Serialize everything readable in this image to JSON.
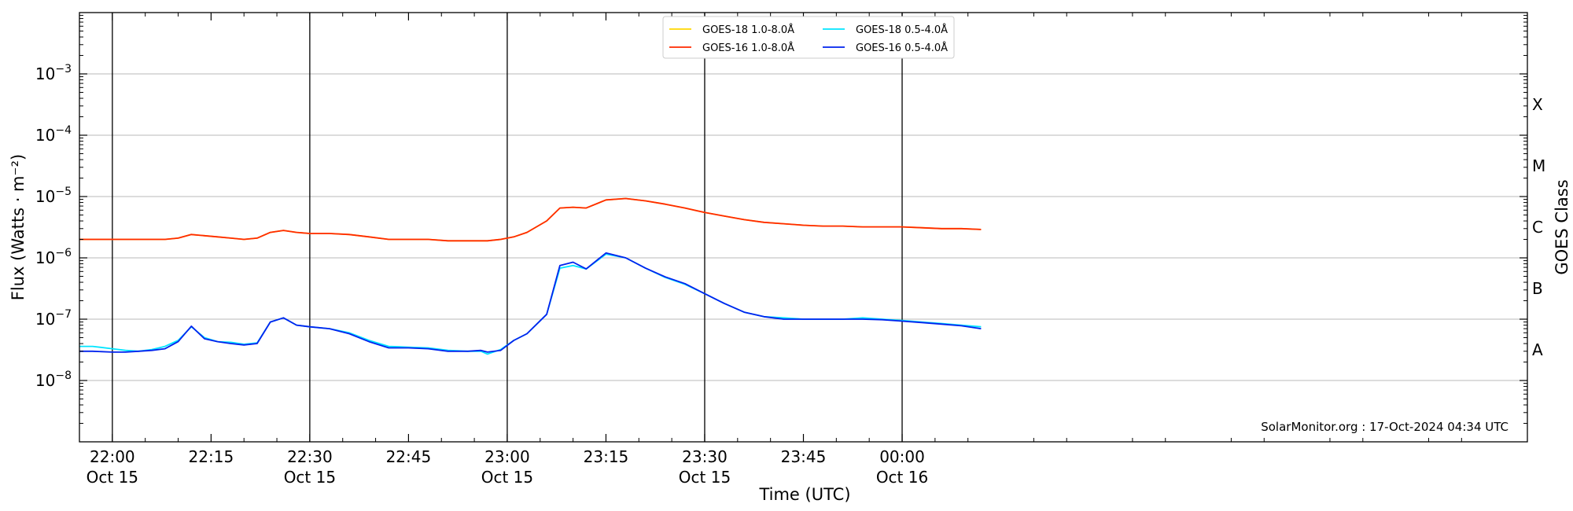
{
  "chart_data": {
    "type": "line",
    "ylabel": "Flux (Watts · m⁻²)",
    "xlabel": "Time (UTC)",
    "right_axis_label": "GOES Class",
    "credit": "SolarMonitor.org : 17-Oct-2024 04:34 UTC",
    "y_scale": "log",
    "ylim_exp": [
      -9,
      -2
    ],
    "y_ticks": [
      {
        "exp": -8,
        "base": "10",
        "sup": "−8"
      },
      {
        "exp": -7,
        "base": "10",
        "sup": "−7"
      },
      {
        "exp": -6,
        "base": "10",
        "sup": "−6"
      },
      {
        "exp": -5,
        "base": "10",
        "sup": "−5"
      },
      {
        "exp": -4,
        "base": "10",
        "sup": "−4"
      },
      {
        "exp": -3,
        "base": "10",
        "sup": "−3"
      }
    ],
    "x_range_minutes_from_2200": [
      -5,
      215
    ],
    "x_ticks": [
      {
        "t": 0,
        "line1": "22:00",
        "line2": "Oct 15",
        "major": true
      },
      {
        "t": 15,
        "line1": "22:15",
        "line2": "",
        "major": false
      },
      {
        "t": 30,
        "line1": "22:30",
        "line2": "Oct 15",
        "major": true
      },
      {
        "t": 45,
        "line1": "22:45",
        "line2": "",
        "major": false
      },
      {
        "t": 60,
        "line1": "23:00",
        "line2": "Oct 15",
        "major": true
      },
      {
        "t": 75,
        "line1": "23:15",
        "line2": "",
        "major": false
      },
      {
        "t": 90,
        "line1": "23:30",
        "line2": "Oct 15",
        "major": true
      },
      {
        "t": 105,
        "line1": "23:45",
        "line2": "",
        "major": false
      },
      {
        "t": 120,
        "line1": "00:00",
        "line2": "Oct 16",
        "major": true
      }
    ],
    "goes_classes": [
      {
        "label": "A",
        "exp": -7.5
      },
      {
        "label": "B",
        "exp": -6.5
      },
      {
        "label": "C",
        "exp": -5.5
      },
      {
        "label": "M",
        "exp": -4.5
      },
      {
        "label": "X",
        "exp": -3.5
      }
    ],
    "legend": [
      {
        "name": "GOES-18 1.0-8.0Å",
        "color": "#ffd700"
      },
      {
        "name": "GOES-18 0.5-4.0Å",
        "color": "#00e5ff"
      },
      {
        "name": "GOES-16 1.0-8.0Å",
        "color": "#ff2a00"
      },
      {
        "name": "GOES-16 0.5-4.0Å",
        "color": "#0022ee"
      }
    ],
    "series": [
      {
        "name": "GOES-18 0.5-4.0Å",
        "color": "#00e5ff",
        "x": [
          -5,
          -3,
          0,
          2,
          4,
          6,
          8,
          10,
          12,
          14,
          16,
          18,
          20,
          22,
          24,
          26,
          28,
          30,
          33,
          36,
          39,
          42,
          45,
          48,
          51,
          54,
          56,
          57,
          59,
          61,
          63,
          66,
          68,
          70,
          72,
          75,
          78,
          81,
          84,
          87,
          90,
          93,
          96,
          99,
          102,
          105,
          108,
          111,
          114,
          117,
          120,
          123,
          126,
          129,
          132
        ],
        "y": [
          3.6e-08,
          3.6e-08,
          3.3e-08,
          3.1e-08,
          3e-08,
          3.2e-08,
          3.6e-08,
          4.5e-08,
          7.5e-08,
          5e-08,
          4.3e-08,
          4.2e-08,
          3.9e-08,
          4.1e-08,
          9e-08,
          1.05e-07,
          8e-08,
          7.5e-08,
          7e-08,
          6e-08,
          4.5e-08,
          3.6e-08,
          3.5e-08,
          3.4e-08,
          3.1e-08,
          3e-08,
          3e-08,
          2.7e-08,
          3.2e-08,
          4.5e-08,
          5.8e-08,
          1.2e-07,
          6.8e-07,
          7.5e-07,
          6.6e-07,
          1.15e-06,
          1e-06,
          6.8e-07,
          4.8e-07,
          3.7e-07,
          2.6e-07,
          1.8e-07,
          1.3e-07,
          1.1e-07,
          1.05e-07,
          1e-07,
          1e-07,
          1e-07,
          1.05e-07,
          1e-07,
          9.5e-08,
          9e-08,
          8.5e-08,
          8e-08,
          7.5e-08
        ]
      },
      {
        "name": "GOES-16 0.5-4.0Å",
        "color": "#0022ee",
        "x": [
          -5,
          -3,
          0,
          2,
          4,
          6,
          8,
          10,
          12,
          14,
          16,
          18,
          20,
          22,
          24,
          26,
          28,
          30,
          33,
          36,
          39,
          42,
          45,
          48,
          51,
          54,
          56,
          57,
          59,
          61,
          63,
          66,
          68,
          70,
          72,
          75,
          78,
          81,
          84,
          87,
          90,
          93,
          96,
          99,
          102,
          105,
          108,
          111,
          114,
          117,
          120,
          123,
          126,
          129,
          132
        ],
        "y": [
          3e-08,
          3e-08,
          2.9e-08,
          2.9e-08,
          3e-08,
          3.1e-08,
          3.3e-08,
          4.3e-08,
          7.7e-08,
          4.8e-08,
          4.3e-08,
          4e-08,
          3.8e-08,
          4e-08,
          9e-08,
          1.05e-07,
          8e-08,
          7.5e-08,
          7e-08,
          5.8e-08,
          4.3e-08,
          3.4e-08,
          3.4e-08,
          3.3e-08,
          3e-08,
          3e-08,
          3.1e-08,
          2.9e-08,
          3.1e-08,
          4.5e-08,
          5.8e-08,
          1.2e-07,
          7.5e-07,
          8.5e-07,
          6.6e-07,
          1.2e-06,
          1e-06,
          6.8e-07,
          4.9e-07,
          3.8e-07,
          2.6e-07,
          1.8e-07,
          1.3e-07,
          1.1e-07,
          1e-07,
          1e-07,
          1e-07,
          1e-07,
          1e-07,
          9.8e-08,
          9.3e-08,
          8.8e-08,
          8.3e-08,
          7.8e-08,
          7e-08
        ]
      },
      {
        "name": "GOES-18 1.0-8.0Å",
        "color": "#ffd700",
        "x": [
          -5,
          -3,
          0,
          2,
          4,
          6,
          8,
          10,
          12,
          14,
          16,
          18,
          20,
          22,
          24,
          26,
          28,
          30,
          33,
          36,
          39,
          42,
          45,
          48,
          51,
          54,
          56,
          57,
          59,
          61,
          63,
          66,
          68,
          70,
          72,
          75,
          78,
          81,
          84,
          87,
          90,
          93,
          96,
          99,
          102,
          105,
          108,
          111,
          114,
          117,
          120,
          123,
          126,
          129,
          132
        ],
        "y": [
          2e-06,
          2e-06,
          2e-06,
          2e-06,
          2e-06,
          2e-06,
          2e-06,
          2.1e-06,
          2.4e-06,
          2.3e-06,
          2.2e-06,
          2.1e-06,
          2e-06,
          2.1e-06,
          2.6e-06,
          2.8e-06,
          2.6e-06,
          2.5e-06,
          2.5e-06,
          2.4e-06,
          2.2e-06,
          2e-06,
          2e-06,
          2e-06,
          1.9e-06,
          1.9e-06,
          1.9e-06,
          1.9e-06,
          2e-06,
          2.2e-06,
          2.6e-06,
          4e-06,
          6.5e-06,
          6.7e-06,
          6.5e-06,
          8.8e-06,
          9.3e-06,
          8.5e-06,
          7.5e-06,
          6.5e-06,
          5.5e-06,
          4.8e-06,
          4.2e-06,
          3.8e-06,
          3.6e-06,
          3.4e-06,
          3.3e-06,
          3.3e-06,
          3.2e-06,
          3.2e-06,
          3.2e-06,
          3.1e-06,
          3e-06,
          3e-06,
          2.9e-06
        ]
      },
      {
        "name": "GOES-16 1.0-8.0Å",
        "color": "#ff2a00",
        "x": [
          -5,
          -3,
          0,
          2,
          4,
          6,
          8,
          10,
          12,
          14,
          16,
          18,
          20,
          22,
          24,
          26,
          28,
          30,
          33,
          36,
          39,
          42,
          45,
          48,
          51,
          54,
          56,
          57,
          59,
          61,
          63,
          66,
          68,
          70,
          72,
          75,
          78,
          81,
          84,
          87,
          90,
          93,
          96,
          99,
          102,
          105,
          108,
          111,
          114,
          117,
          120,
          123,
          126,
          129,
          132
        ],
        "y": [
          2e-06,
          2e-06,
          2e-06,
          2e-06,
          2e-06,
          2e-06,
          2e-06,
          2.1e-06,
          2.4e-06,
          2.3e-06,
          2.2e-06,
          2.1e-06,
          2e-06,
          2.1e-06,
          2.6e-06,
          2.8e-06,
          2.6e-06,
          2.5e-06,
          2.5e-06,
          2.4e-06,
          2.2e-06,
          2e-06,
          2e-06,
          2e-06,
          1.9e-06,
          1.9e-06,
          1.9e-06,
          1.9e-06,
          2e-06,
          2.2e-06,
          2.6e-06,
          4e-06,
          6.5e-06,
          6.7e-06,
          6.5e-06,
          8.8e-06,
          9.3e-06,
          8.5e-06,
          7.5e-06,
          6.5e-06,
          5.5e-06,
          4.8e-06,
          4.2e-06,
          3.8e-06,
          3.6e-06,
          3.4e-06,
          3.3e-06,
          3.3e-06,
          3.2e-06,
          3.2e-06,
          3.2e-06,
          3.1e-06,
          3e-06,
          3e-06,
          2.9e-06
        ]
      }
    ]
  }
}
